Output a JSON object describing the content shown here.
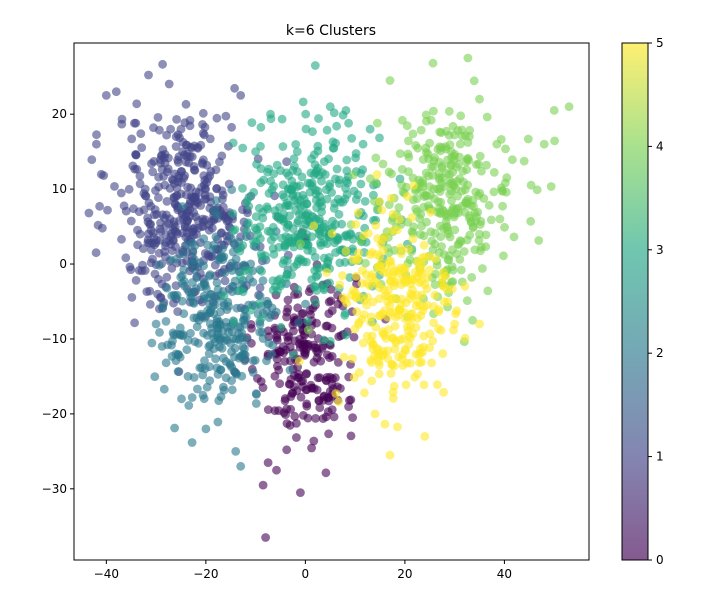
{
  "chart_data": {
    "type": "scatter",
    "title": "k=6 Clusters",
    "xlabel": "",
    "ylabel": "",
    "xlim": [
      -46.5,
      57
    ],
    "ylim": [
      -39.5,
      29.5
    ],
    "x_ticks": [
      -40,
      -20,
      0,
      20,
      40
    ],
    "y_ticks": [
      -30,
      -20,
      -10,
      0,
      10,
      20
    ],
    "x_tick_labels": [
      "−40",
      "−20",
      "0",
      "20",
      "40"
    ],
    "y_tick_labels": [
      "−30",
      "−20",
      "−10",
      "0",
      "10",
      "20"
    ],
    "grid": false,
    "colormap": "viridis",
    "point_alpha": 0.6,
    "colorbar": {
      "range": [
        0,
        5
      ],
      "ticks": [
        0,
        1,
        2,
        3,
        4,
        5
      ],
      "tick_labels": [
        "0",
        "1",
        "2",
        "3",
        "4",
        "5"
      ],
      "stops": [
        "#440154",
        "#414487",
        "#2a788e",
        "#22a884",
        "#7ad151",
        "#fde725"
      ]
    },
    "clusters": [
      {
        "label": 0,
        "color": "#440154",
        "center": [
          0,
          -12
        ],
        "spread": [
          5,
          6
        ],
        "count": 230,
        "sample_points": [
          [
            -8.5,
            -29.5
          ],
          [
            -1,
            -30.5
          ],
          [
            -8,
            -36.5
          ],
          [
            9.5,
            -20.5
          ],
          [
            -7.5,
            -26.5
          ]
        ]
      },
      {
        "label": 1,
        "color": "#414487",
        "center": [
          -24,
          7
        ],
        "spread": [
          7,
          6.5
        ],
        "count": 420,
        "sample_points": [
          [
            -40,
            22.5
          ],
          [
            -38,
            23
          ],
          [
            -13,
            22.5
          ],
          [
            -42,
            16
          ],
          [
            -25,
            18
          ]
        ]
      },
      {
        "label": 2,
        "color": "#2a788e",
        "center": [
          -17,
          -7
        ],
        "spread": [
          6,
          6
        ],
        "count": 300,
        "sample_points": [
          [
            -13,
            -27
          ],
          [
            -30,
            -8
          ],
          [
            -26,
            -12
          ],
          [
            -20,
            -22
          ],
          [
            -14,
            -25
          ]
        ]
      },
      {
        "label": 3,
        "color": "#22a884",
        "center": [
          1,
          6
        ],
        "spread": [
          7,
          6
        ],
        "count": 380,
        "sample_points": [
          [
            2,
            26.5
          ],
          [
            5,
            21
          ],
          [
            13,
            18
          ],
          [
            -7,
            20
          ],
          [
            -10,
            15
          ]
        ]
      },
      {
        "label": 4,
        "color": "#7ad151",
        "center": [
          28,
          8
        ],
        "spread": [
          7,
          6
        ],
        "count": 330,
        "sample_points": [
          [
            17,
            24.5
          ],
          [
            35,
            22
          ],
          [
            50,
            20.5
          ],
          [
            53,
            21
          ],
          [
            48,
            16
          ]
        ]
      },
      {
        "label": 5,
        "color": "#fde725",
        "center": [
          18,
          -6
        ],
        "spread": [
          6,
          7
        ],
        "count": 280,
        "sample_points": [
          [
            24,
            -23
          ],
          [
            17,
            -25.5
          ],
          [
            30,
            -8
          ],
          [
            35,
            -8
          ],
          [
            14,
            -20
          ]
        ]
      }
    ]
  }
}
